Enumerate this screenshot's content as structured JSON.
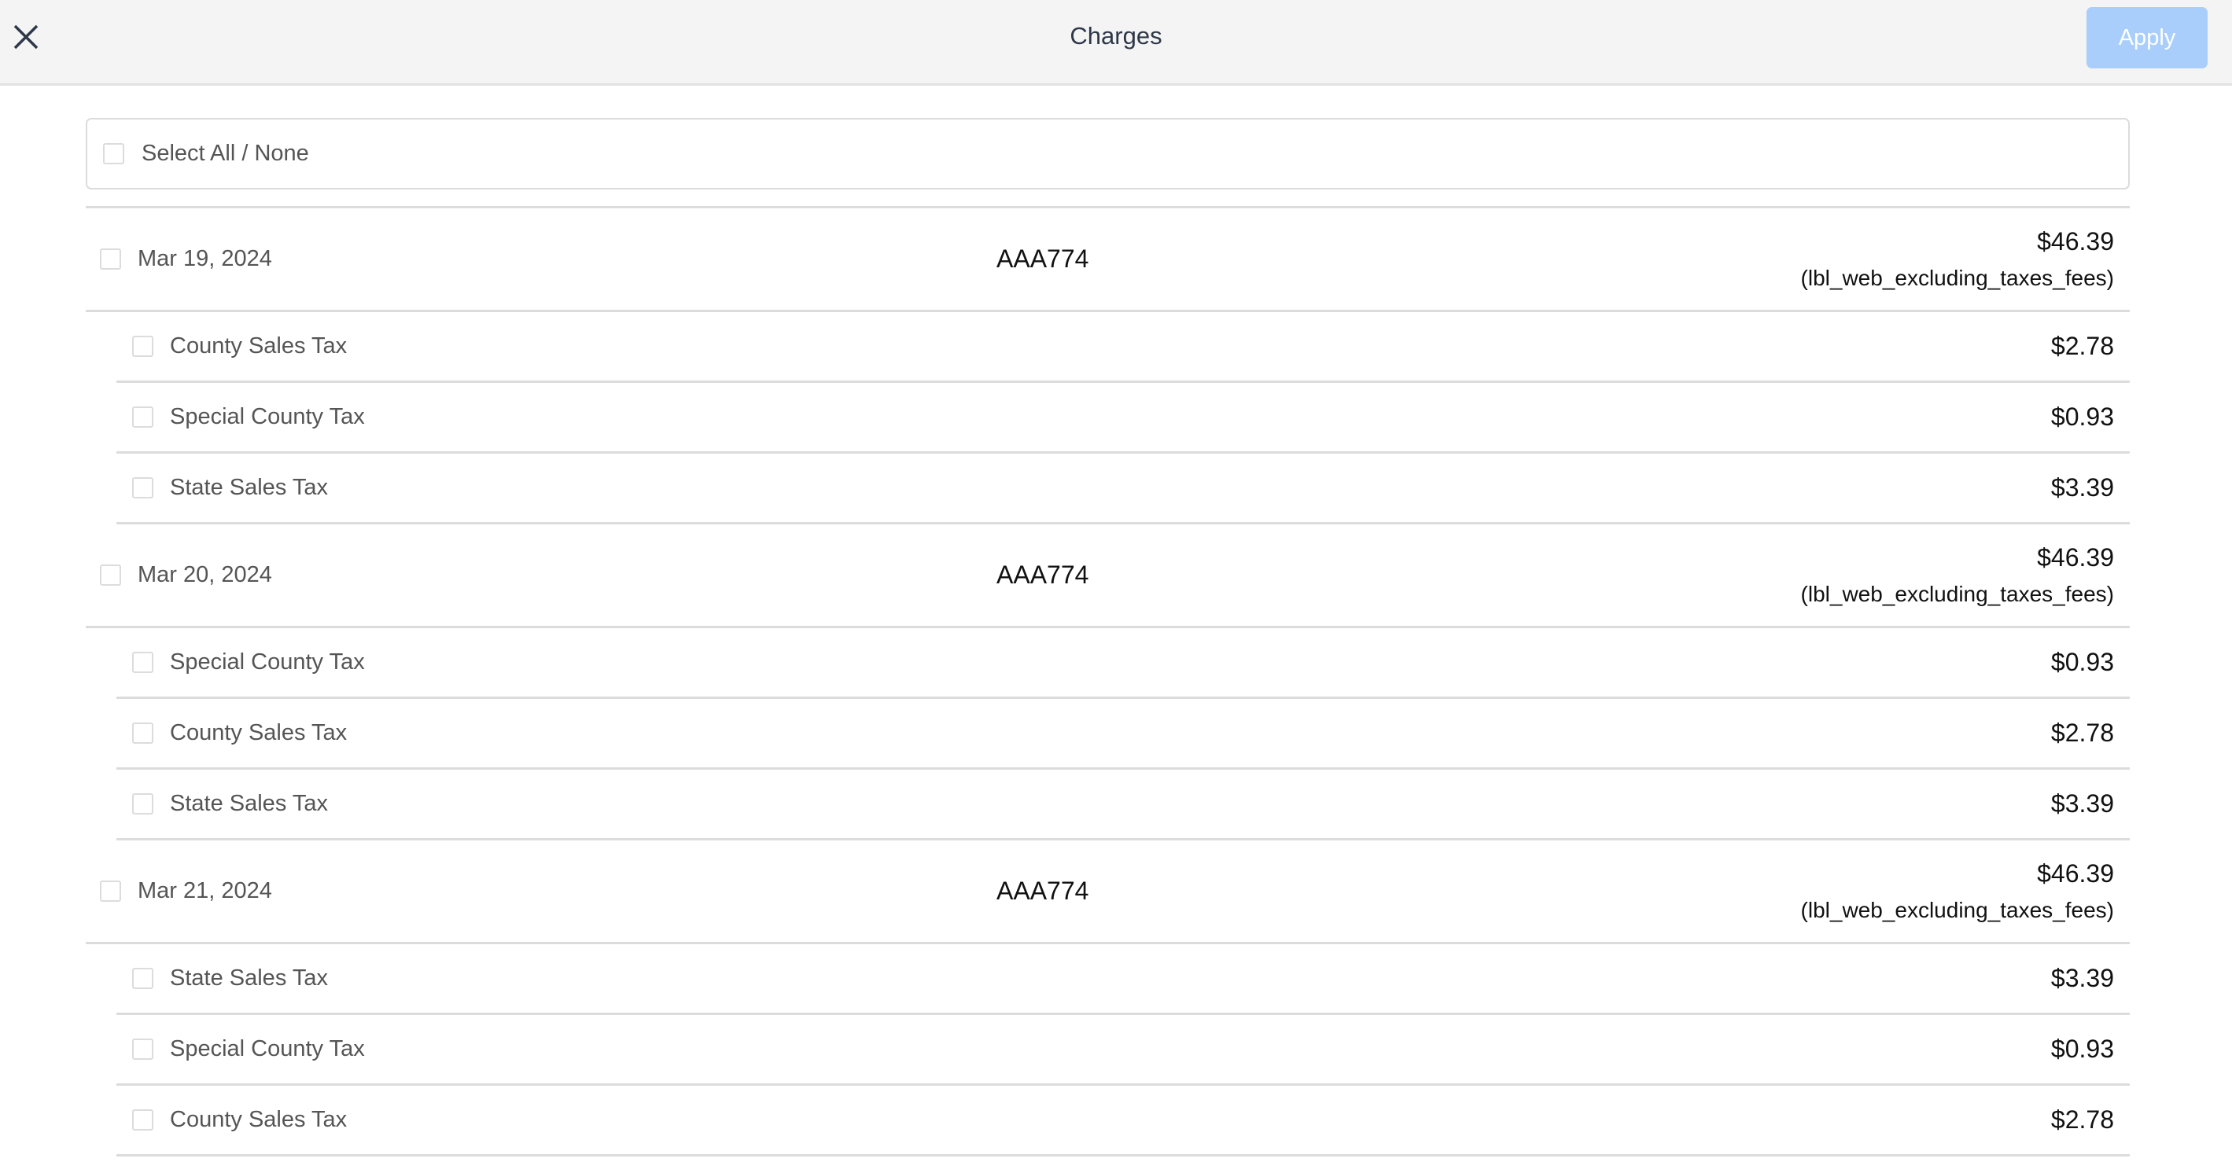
{
  "header": {
    "title": "Charges",
    "apply_label": "Apply",
    "close_icon": "close-icon",
    "apply_color": "#a9cefb"
  },
  "select_all": {
    "label": "Select All / None",
    "checked": false
  },
  "groups": [
    {
      "date": "Mar 19, 2024",
      "ref": "AAA774",
      "amount": "$46.39",
      "note": "(lbl_web_excluding_taxes_fees)",
      "items": [
        {
          "name": "County Sales Tax",
          "amount": "$2.78"
        },
        {
          "name": "Special County Tax",
          "amount": "$0.93"
        },
        {
          "name": "State Sales Tax",
          "amount": "$3.39"
        }
      ]
    },
    {
      "date": "Mar 20, 2024",
      "ref": "AAA774",
      "amount": "$46.39",
      "note": "(lbl_web_excluding_taxes_fees)",
      "items": [
        {
          "name": "Special County Tax",
          "amount": "$0.93"
        },
        {
          "name": "County Sales Tax",
          "amount": "$2.78"
        },
        {
          "name": "State Sales Tax",
          "amount": "$3.39"
        }
      ]
    },
    {
      "date": "Mar 21, 2024",
      "ref": "AAA774",
      "amount": "$46.39",
      "note": "(lbl_web_excluding_taxes_fees)",
      "items": [
        {
          "name": "State Sales Tax",
          "amount": "$3.39"
        },
        {
          "name": "Special County Tax",
          "amount": "$0.93"
        },
        {
          "name": "County Sales Tax",
          "amount": "$2.78"
        }
      ]
    }
  ]
}
